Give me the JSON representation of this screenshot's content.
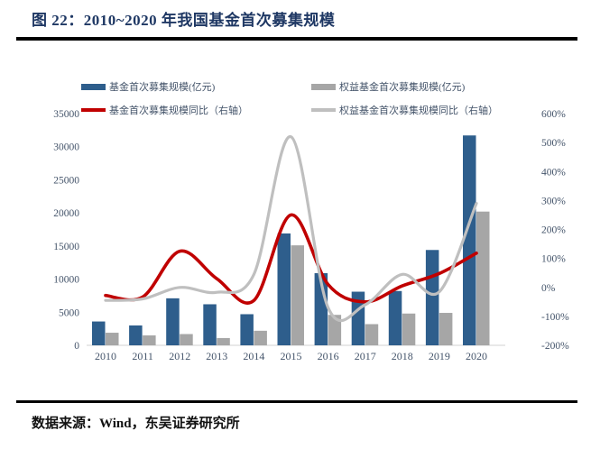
{
  "figure": {
    "title": "图 22：2010~2020 年我国基金首次募集规模",
    "source": "数据来源：Wind，东吴证券研究所"
  },
  "chart_data": {
    "type": "bar",
    "subtype": "combo bar+line, dual axis",
    "categories": [
      "2010",
      "2011",
      "2012",
      "2013",
      "2014",
      "2015",
      "2016",
      "2017",
      "2018",
      "2019",
      "2020"
    ],
    "series": [
      {
        "name": "基金首次募集规模(亿元)",
        "type": "bar",
        "axis": "left",
        "color": "#2E5E8C",
        "values": [
          3600,
          3000,
          7100,
          6200,
          4700,
          16900,
          10900,
          8100,
          8200,
          14400,
          31700
        ]
      },
      {
        "name": "权益基金首次募集规模(亿元)",
        "type": "bar",
        "axis": "left",
        "color": "#A6A6A6",
        "values": [
          1900,
          1500,
          1700,
          1100,
          2200,
          15100,
          4600,
          3200,
          4800,
          4900,
          20200
        ]
      },
      {
        "name": "基金首次募集规模同比（右轴）",
        "type": "line",
        "axis": "right",
        "color": "#C00000",
        "values": [
          -28,
          -33,
          125,
          30,
          -45,
          250,
          10,
          -50,
          5,
          48,
          118
        ]
      },
      {
        "name": "权益基金首次募集规模同比（右轴）",
        "type": "line",
        "axis": "right",
        "color": "#BFBFBF",
        "values": [
          -45,
          -40,
          0,
          -17,
          45,
          520,
          -70,
          -60,
          45,
          -15,
          290
        ]
      }
    ],
    "left_axis": {
      "min": 0,
      "max": 35000,
      "step": 5000,
      "tick_labels": [
        "0",
        "5000",
        "10000",
        "15000",
        "20000",
        "25000",
        "30000",
        "35000"
      ],
      "tick_values": [
        0,
        5000,
        10000,
        15000,
        20000,
        25000,
        30000,
        35000
      ]
    },
    "right_axis": {
      "min": -200,
      "max": 600,
      "step": 100,
      "tick_labels": [
        "-200%",
        "-100%",
        "0%",
        "100%",
        "200%",
        "300%",
        "400%",
        "500%",
        "600%"
      ],
      "tick_values": [
        -200,
        -100,
        0,
        100,
        200,
        300,
        400,
        500,
        600
      ]
    },
    "legend_position": "top",
    "grid": "off",
    "title": "",
    "xlabel": "",
    "ylabel": ""
  }
}
